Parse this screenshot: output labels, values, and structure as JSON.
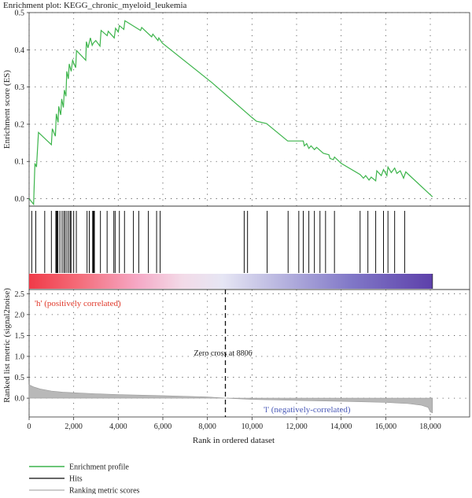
{
  "chart_data": {
    "type": "line",
    "title": "Enrichment plot: KEGG_chronic_myeloid_leukemia",
    "es_panel": {
      "ylabel": "Enrichment score (ES)",
      "ylim": [
        -0.02,
        0.5
      ],
      "yticks": [
        "0.0",
        "0.1",
        "0.2",
        "0.3",
        "0.4",
        "0.5"
      ],
      "grid": "dotted",
      "series_name": "Enrichment profile",
      "color": "#3cb44b",
      "points": [
        [
          0,
          0.0
        ],
        [
          200,
          -0.015
        ],
        [
          260,
          0.095
        ],
        [
          330,
          0.085
        ],
        [
          420,
          0.178
        ],
        [
          1000,
          0.145
        ],
        [
          1040,
          0.188
        ],
        [
          1180,
          0.168
        ],
        [
          1220,
          0.228
        ],
        [
          1300,
          0.205
        ],
        [
          1330,
          0.248
        ],
        [
          1420,
          0.225
        ],
        [
          1460,
          0.268
        ],
        [
          1540,
          0.245
        ],
        [
          1580,
          0.292
        ],
        [
          1650,
          0.275
        ],
        [
          1690,
          0.342
        ],
        [
          1760,
          0.322
        ],
        [
          1800,
          0.362
        ],
        [
          1890,
          0.342
        ],
        [
          1950,
          0.372
        ],
        [
          2090,
          0.352
        ],
        [
          2130,
          0.398
        ],
        [
          2540,
          0.372
        ],
        [
          2570,
          0.422
        ],
        [
          2640,
          0.405
        ],
        [
          2750,
          0.432
        ],
        [
          2830,
          0.412
        ],
        [
          2880,
          0.418
        ],
        [
          2990,
          0.425
        ],
        [
          3180,
          0.41
        ],
        [
          3230,
          0.452
        ],
        [
          3500,
          0.438
        ],
        [
          3550,
          0.45
        ],
        [
          3820,
          0.432
        ],
        [
          3880,
          0.458
        ],
        [
          4000,
          0.448
        ],
        [
          4050,
          0.465
        ],
        [
          4250,
          0.455
        ],
        [
          4300,
          0.478
        ],
        [
          5000,
          0.452
        ],
        [
          5050,
          0.46
        ],
        [
          5500,
          0.435
        ],
        [
          5550,
          0.442
        ],
        [
          5780,
          0.425
        ],
        [
          5820,
          0.432
        ],
        [
          5980,
          0.418
        ],
        [
          8200,
          0.312
        ],
        [
          10000,
          0.218
        ],
        [
          10200,
          0.208
        ],
        [
          10650,
          0.202
        ],
        [
          11600,
          0.155
        ],
        [
          12300,
          0.155
        ],
        [
          12350,
          0.142
        ],
        [
          12450,
          0.148
        ],
        [
          12550,
          0.135
        ],
        [
          12650,
          0.142
        ],
        [
          12800,
          0.132
        ],
        [
          12900,
          0.138
        ],
        [
          13200,
          0.122
        ],
        [
          13450,
          0.118
        ],
        [
          13500,
          0.108
        ],
        [
          13650,
          0.105
        ],
        [
          13700,
          0.112
        ],
        [
          14000,
          0.095
        ],
        [
          14850,
          0.065
        ],
        [
          15000,
          0.055
        ],
        [
          15100,
          0.062
        ],
        [
          15250,
          0.05
        ],
        [
          15350,
          0.058
        ],
        [
          15550,
          0.048
        ],
        [
          15600,
          0.075
        ],
        [
          15800,
          0.062
        ],
        [
          15900,
          0.078
        ],
        [
          16050,
          0.062
        ],
        [
          16100,
          0.085
        ],
        [
          16250,
          0.07
        ],
        [
          16400,
          0.082
        ],
        [
          16500,
          0.068
        ],
        [
          16650,
          0.075
        ],
        [
          16800,
          0.055
        ],
        [
          16900,
          0.072
        ],
        [
          18100,
          0.005
        ]
      ]
    },
    "hits": {
      "series_name": "Hits",
      "positions": [
        120,
        300,
        700,
        1000,
        1200,
        1230,
        1260,
        1290,
        1380,
        1480,
        1560,
        1620,
        1700,
        1780,
        1850,
        1880,
        2000,
        2120,
        2600,
        2700,
        2850,
        2870,
        2890,
        2910,
        2930,
        3200,
        3500,
        3800,
        3860,
        4050,
        4280,
        4680,
        4920,
        5350,
        5720,
        5880,
        9650,
        9800,
        10680,
        11620,
        12100,
        12300,
        12550,
        12800,
        13050,
        13300,
        13700,
        14850,
        15200,
        15550,
        15900,
        16100,
        16400,
        16850
      ]
    },
    "rank_panel": {
      "ylabel": "Ranked list metric (signal2noise)",
      "xlabel": "Rank in ordered dataset",
      "xlim": [
        0,
        18000
      ],
      "xticks": [
        "0",
        "2,000",
        "4,000",
        "6,000",
        "8,000",
        "10,000",
        "12,000",
        "14,000",
        "16,000",
        "18,000"
      ],
      "ylim": [
        -0.45,
        2.6
      ],
      "yticks": [
        "0.0",
        "0.5",
        "1.0",
        "1.5",
        "2.0",
        "2.5"
      ],
      "series_name": "Ranking metric scores",
      "fill_color": "#b8b8b8",
      "scores": [
        [
          0,
          0.32
        ],
        [
          200,
          0.27
        ],
        [
          500,
          0.22
        ],
        [
          1000,
          0.17
        ],
        [
          1500,
          0.145
        ],
        [
          2000,
          0.13
        ],
        [
          3000,
          0.105
        ],
        [
          4000,
          0.085
        ],
        [
          6000,
          0.06
        ],
        [
          8000,
          0.03
        ],
        [
          8806,
          0.0
        ],
        [
          10000,
          -0.03
        ],
        [
          12000,
          -0.055
        ],
        [
          14000,
          -0.075
        ],
        [
          16000,
          -0.1
        ],
        [
          17000,
          -0.13
        ],
        [
          17600,
          -0.17
        ],
        [
          17900,
          -0.22
        ],
        [
          18000,
          -0.33
        ],
        [
          18100,
          -0.35
        ]
      ],
      "zero_cross_rank": 8806,
      "zero_cross_label": "Zero cross at 8806",
      "pos_label": "'h' (positively correlated)",
      "neg_label": "'l' (negatively-correlated)",
      "pos_color": "#e0392b",
      "neg_color": "#4a5ab8"
    },
    "legend": {
      "placement": "bottom-left",
      "items": [
        {
          "label": "Enrichment profile",
          "color": "#3cb44b"
        },
        {
          "label": "Hits",
          "color": "#333333"
        },
        {
          "label": "Ranking metric scores",
          "color": "#bbbbbb"
        }
      ]
    }
  }
}
